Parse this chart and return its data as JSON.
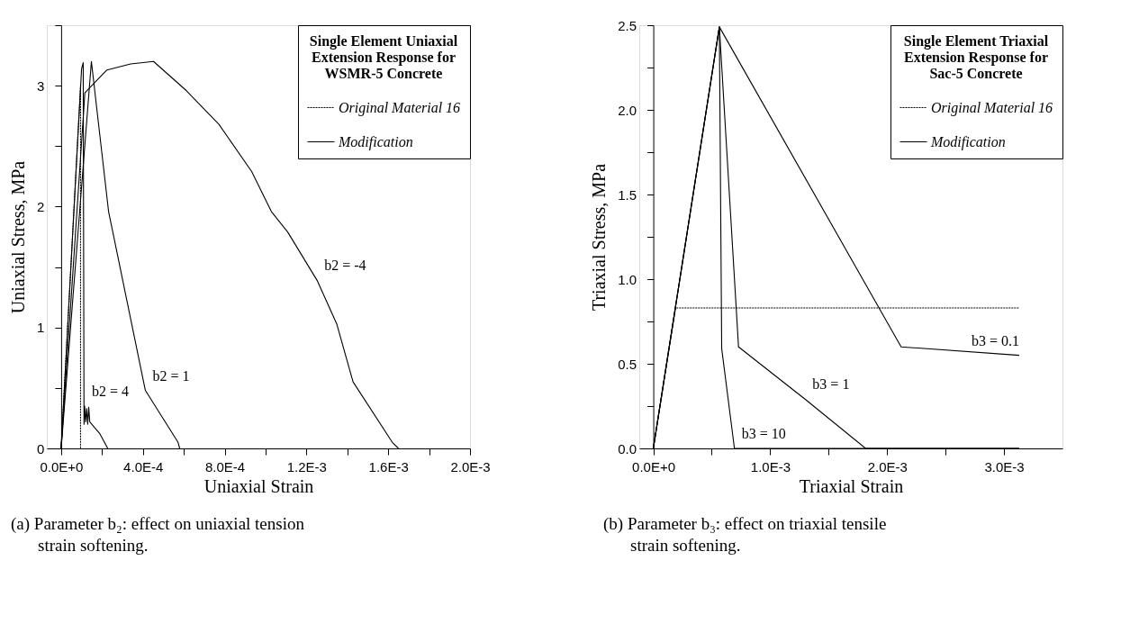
{
  "chart_data": [
    {
      "type": "line",
      "legend_title": "Single Element Uniaxial Extension Response for WSMR-5 Concrete",
      "xlabel": "Uniaxial Strain",
      "ylabel": "Uniaxial Stress, MPa",
      "legend": "top right",
      "marker": "none",
      "xlim": [
        -7e-05,
        0.002
      ],
      "ylim": [
        0,
        3.5
      ],
      "xticks": [
        {
          "value": 0,
          "label": "0.0E+0"
        },
        {
          "value": 0.0002,
          "label": null
        },
        {
          "value": 0.0004,
          "label": "4.0E-4"
        },
        {
          "value": 0.0006,
          "label": null
        },
        {
          "value": 0.0008,
          "label": "8.0E-4"
        },
        {
          "value": 0.001,
          "label": null
        },
        {
          "value": 0.0012,
          "label": "1.2E-3"
        },
        {
          "value": 0.0014,
          "label": null
        },
        {
          "value": 0.0016,
          "label": "1.6E-3"
        },
        {
          "value": 0.0018,
          "label": null
        },
        {
          "value": 0.002,
          "label": "2.0E-3"
        }
      ],
      "yticks": [
        0,
        {
          "value": 0.5,
          "label": null
        },
        1,
        {
          "value": 1.5,
          "label": null
        },
        2,
        {
          "value": 2.5,
          "label": null
        },
        3,
        {
          "value": 3.5,
          "label": null
        }
      ],
      "series": [
        {
          "name": "Original Material 16",
          "color": "#000000",
          "line_style": "dotted",
          "x": [
            0,
            9.5e-05,
            9.5e-05
          ],
          "values": [
            0,
            3.0,
            0
          ]
        },
        {
          "name": "Modification",
          "color": "#000000",
          "line_style": "solid",
          "x": [
            0,
            0.0001,
            0.000108,
            0.000112,
            0.000115,
            0.00012,
            0.000125,
            0.00013,
            0.000135,
            0.00014,
            0.00016,
            0.00019,
            0.000228
          ],
          "values": [
            0,
            3.14,
            3.19,
            0.2,
            0.35,
            0.22,
            0.33,
            0.2,
            0.34,
            0.22,
            0.18,
            0.12,
            0
          ]
        },
        {
          "color": "#000000",
          "line_style": "solid",
          "x": [
            0,
            0.000148,
            0.000232,
            0.000412,
            0.000572,
            0.00058
          ],
          "values": [
            0,
            3.2,
            1.96,
            0.48,
            0.05,
            0
          ]
        },
        {
          "color": "#000000",
          "line_style": "solid",
          "x": [
            0,
            0.000116,
            0.000224,
            0.00034,
            0.000452,
            0.000612,
            0.000772,
            0.000932,
            0.001028,
            0.001108,
            0.001252,
            0.001348,
            0.001428,
            0.00162,
            0.00165
          ],
          "values": [
            0,
            2.94,
            3.13,
            3.18,
            3.2,
            2.96,
            2.68,
            2.29,
            1.96,
            1.79,
            1.39,
            1.03,
            0.55,
            0.05,
            0
          ]
        }
      ],
      "annotations": [
        {
          "text": "b2 = 4",
          "x": 0.000115,
          "y": 0.35
        },
        {
          "text": "b2 = 1",
          "x": 0.000412,
          "y": 0.48
        },
        {
          "text": "b2 = -4",
          "x": 0.001252,
          "y": 1.39
        },
        "(a)  Parameter b₂:  effect on uniaxial tension strain softening."
      ]
    },
    {
      "type": "line",
      "legend_title": "Single Element Triaxial Extension Response for Sac-5 Concrete",
      "xlabel": "Triaxial Strain",
      "ylabel": "Triaxial Stress, MPa",
      "legend": "top right",
      "marker": "none",
      "xlim": [
        -0.00012,
        0.0035
      ],
      "ylim": [
        0,
        2.5
      ],
      "xticks": [
        {
          "value": 0,
          "label": "0.0E+0"
        },
        {
          "value": 0.0005,
          "label": null
        },
        {
          "value": 0.001,
          "label": "1.0E-3"
        },
        {
          "value": 0.0015,
          "label": null
        },
        {
          "value": 0.002,
          "label": "2.0E-3"
        },
        {
          "value": 0.0025,
          "label": null
        },
        {
          "value": 0.003,
          "label": "3.0E-3"
        }
      ],
      "yticks": [
        {
          "value": 0,
          "label": "0.0"
        },
        {
          "value": 0.25,
          "label": null
        },
        0.5,
        {
          "value": 0.75,
          "label": null
        },
        {
          "value": 1,
          "label": "1.0"
        },
        {
          "value": 1.25,
          "label": null
        },
        1.5,
        {
          "value": 1.75,
          "label": null
        },
        {
          "value": 2,
          "label": "2.0"
        },
        {
          "value": 2.25,
          "label": null
        },
        2.5
      ],
      "series": [
        {
          "name": "Original Material 16",
          "color": "#000000",
          "line_style": "dotted",
          "x": [
            0,
            0.00019,
            0.00313
          ],
          "values": [
            0,
            0.83,
            0.83
          ]
        },
        {
          "name": "Modification",
          "color": "#000000",
          "line_style": "solid",
          "x": [
            0,
            0.000565,
            0.000585,
            0.000694,
            0.00313
          ],
          "values": [
            0,
            2.49,
            0.59,
            0,
            0
          ]
        },
        {
          "color": "#000000",
          "line_style": "solid",
          "x": [
            0,
            0.000565,
            0.000729,
            0.0013,
            0.001816,
            0.00313
          ],
          "values": [
            0,
            2.49,
            0.6,
            0.29,
            0,
            0
          ]
        },
        {
          "color": "#000000",
          "line_style": "solid",
          "x": [
            0,
            0.000565,
            0.00212,
            0.00313
          ],
          "values": [
            0,
            2.49,
            0.6,
            0.55
          ]
        }
      ],
      "annotations": [
        {
          "text": "b3 = 10",
          "x": 0.000694,
          "y": 0
        },
        {
          "text": "b3 = 1",
          "x": 0.0013,
          "y": 0.29
        },
        {
          "text": "b3 = 0.1",
          "x": 0.00313,
          "y": 0.55
        },
        "(b) Parameter b₃: effect on triaxial tensile strain softening."
      ]
    }
  ]
}
